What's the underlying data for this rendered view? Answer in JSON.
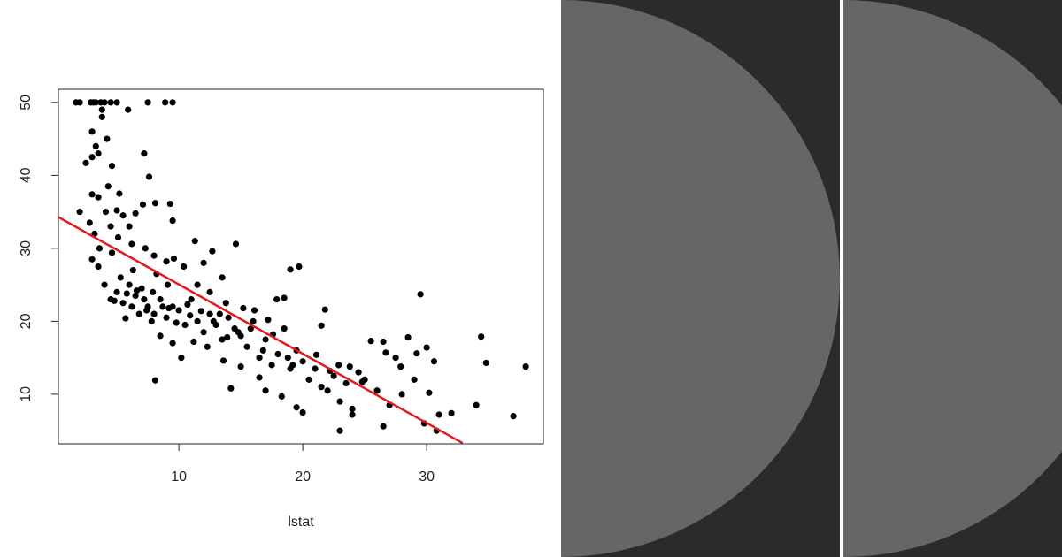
{
  "chart_data": {
    "type": "scatter",
    "x_label": "lstat",
    "xlim": [
      0.28,
      39.42
    ],
    "ylim": [
      3.2,
      51.8
    ],
    "xticks": [
      10,
      20,
      30
    ],
    "yticks": [
      10,
      20,
      30,
      40,
      50
    ],
    "color": "#000000",
    "x": [
      1.7,
      2.0,
      2.9,
      3.1,
      3.3,
      3.7,
      4.0,
      4.5,
      5.0,
      7.5,
      8.9,
      9.5,
      3.0,
      3.3,
      3.5,
      3.8,
      4.2,
      4.6,
      3.0,
      2.5,
      3.8,
      5.9,
      7.2,
      7.6,
      4.3,
      5.2,
      3.0,
      3.5,
      2.0,
      4.1,
      5.0,
      5.5,
      6.5,
      7.1,
      8.1,
      9.3,
      9.5,
      6.0,
      4.5,
      3.2,
      2.8,
      3.6,
      4.6,
      5.1,
      6.2,
      7.3,
      8.0,
      9.0,
      9.6,
      11.3,
      12.7,
      13.5,
      14.6,
      10.4,
      12.0,
      11.5,
      4.0,
      3.0,
      3.5,
      4.5,
      5.0,
      5.5,
      6.0,
      6.5,
      7.0,
      7.5,
      8.0,
      8.5,
      9.0,
      9.5,
      10.0,
      10.5,
      11.0,
      11.5,
      12.0,
      12.5,
      13.0,
      13.5,
      14.0,
      14.5,
      15.0,
      15.5,
      16.0,
      16.5,
      17.0,
      17.5,
      18.0,
      18.5,
      19.0,
      19.5,
      20.0,
      20.5,
      21.0,
      21.5,
      22.0,
      22.5,
      23.0,
      23.5,
      24.0,
      24.5,
      25.0,
      26.0,
      26.5,
      27.0,
      27.5,
      28.0,
      28.5,
      29.0,
      29.5,
      30.0,
      30.2,
      30.6,
      31.0,
      30.8,
      32.0,
      34.0,
      34.4,
      34.8,
      37.0,
      38.0,
      29.8,
      23.0,
      24.0,
      26.5,
      20.0,
      19.5,
      21.5,
      21.8,
      19.7,
      19.0,
      17.9,
      18.5,
      16.1,
      8.1,
      8.5,
      10.2,
      9.5,
      7.8,
      6.8,
      5.7,
      5.3,
      6.3,
      8.2,
      9.1,
      12.5,
      13.8,
      15.2,
      17.2,
      14.2,
      15.0,
      16.5,
      17.0,
      18.3,
      22.9,
      23.8,
      25.5,
      26.7,
      4.8,
      5.8,
      6.6,
      7.2,
      7.9,
      8.7,
      9.2,
      10.7,
      11.8,
      12.8,
      13.3,
      14.8,
      15.8,
      16.8,
      18.8,
      19.2,
      11.2,
      12.3,
      13.6,
      6.2,
      7.4,
      9.8,
      10.9,
      13.9,
      17.6,
      21.1,
      22.2,
      24.8,
      27.9,
      29.2
    ],
    "values": [
      50,
      50,
      50,
      50,
      50,
      50,
      50,
      50,
      50,
      50,
      50,
      50,
      46,
      44,
      43,
      48,
      45,
      41.3,
      42.5,
      41.7,
      49,
      49,
      43,
      39.8,
      38.5,
      37.5,
      37.4,
      37,
      35,
      35,
      35.2,
      34.5,
      34.8,
      36,
      36.2,
      36.1,
      33.8,
      33,
      33,
      32,
      33.5,
      30,
      29.4,
      31.5,
      30.6,
      30,
      29,
      28.2,
      28.6,
      31,
      29.6,
      26,
      30.6,
      27.5,
      28,
      25,
      25,
      28.5,
      27.5,
      23,
      24,
      22.5,
      25,
      23.5,
      24.5,
      22,
      21,
      23,
      20.5,
      22,
      21.5,
      19.5,
      23,
      20,
      18.5,
      21,
      19.5,
      17.5,
      20.5,
      19,
      18,
      16.5,
      20,
      15,
      17.5,
      14,
      15.5,
      19,
      13.5,
      16,
      14.5,
      12,
      13.5,
      11,
      10.5,
      12.5,
      9,
      11.5,
      8,
      13,
      12,
      10.5,
      17.2,
      8.5,
      15,
      10,
      17.8,
      12,
      23.7,
      16.4,
      10.2,
      14.5,
      7.2,
      5,
      7.4,
      8.5,
      17.9,
      14.3,
      7,
      13.8,
      6,
      5,
      7.2,
      5.6,
      7.5,
      8.2,
      19.4,
      21.6,
      27.5,
      27.1,
      23,
      23.2,
      21.5,
      11.9,
      18,
      15,
      17,
      20,
      21,
      20.4,
      26,
      27,
      26.5,
      25,
      24,
      22.5,
      21.8,
      20.2,
      10.8,
      13.8,
      12.3,
      10.5,
      9.7,
      14,
      13.8,
      17.3,
      15.7,
      22.8,
      23.8,
      24.2,
      23,
      24,
      22,
      21.8,
      22.3,
      21.4,
      20,
      21,
      18.5,
      19,
      16,
      15,
      14,
      17.2,
      16.5,
      14.6,
      22,
      21.5,
      19.8,
      20.8,
      17.8,
      18.2,
      15.4,
      13.2,
      11.7,
      13.8,
      15.6
    ],
    "lines": [
      {
        "color": "#e41a1c",
        "x": [
          0.28,
          32.9
        ],
        "values": [
          34.28,
          3.3
        ]
      }
    ]
  }
}
